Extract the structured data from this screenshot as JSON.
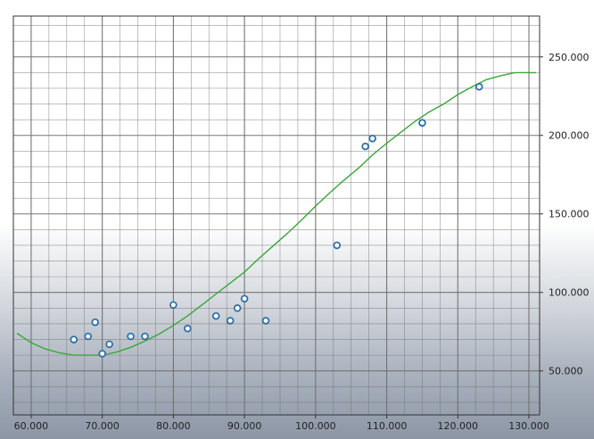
{
  "chart_data": {
    "type": "scatter",
    "title": "",
    "xlabel": "",
    "ylabel": "",
    "xlim": [
      57500,
      131500
    ],
    "ylim": [
      22000,
      276000
    ],
    "x_ticks": [
      60000,
      70000,
      80000,
      90000,
      100000,
      110000,
      120000,
      130000
    ],
    "x_tick_labels": [
      "60.000",
      "70.000",
      "80.000",
      "90.000",
      "100.000",
      "110.000",
      "120.000",
      "130.000"
    ],
    "y_ticks": [
      50000,
      100000,
      150000,
      200000,
      250000
    ],
    "y_tick_labels": [
      "50.000",
      "100.000",
      "150.000",
      "200.000",
      "250.000"
    ],
    "grid": true,
    "y_axis_position": "right",
    "colors": {
      "points_fill": "#ffffff",
      "points_stroke": "#2f6fa6",
      "trend_line": "#3aa63a",
      "grid": "#6f6f6f",
      "axis": "#333333"
    },
    "points": [
      {
        "x": 66000,
        "y": 70000
      },
      {
        "x": 68000,
        "y": 72000
      },
      {
        "x": 69000,
        "y": 81000
      },
      {
        "x": 70000,
        "y": 61000
      },
      {
        "x": 71000,
        "y": 67000
      },
      {
        "x": 74000,
        "y": 72000
      },
      {
        "x": 76000,
        "y": 72000
      },
      {
        "x": 80000,
        "y": 92000
      },
      {
        "x": 82000,
        "y": 77000
      },
      {
        "x": 86000,
        "y": 85000
      },
      {
        "x": 88000,
        "y": 82000
      },
      {
        "x": 89000,
        "y": 90000
      },
      {
        "x": 90000,
        "y": 96000
      },
      {
        "x": 93000,
        "y": 82000
      },
      {
        "x": 103000,
        "y": 130000
      },
      {
        "x": 107000,
        "y": 193000
      },
      {
        "x": 108000,
        "y": 198000
      },
      {
        "x": 115000,
        "y": 208000
      },
      {
        "x": 123000,
        "y": 231000
      }
    ],
    "trend_line": [
      {
        "x": 58000,
        "y": 74000
      },
      {
        "x": 60000,
        "y": 68000
      },
      {
        "x": 62000,
        "y": 64000
      },
      {
        "x": 64000,
        "y": 61500
      },
      {
        "x": 66000,
        "y": 60000
      },
      {
        "x": 68000,
        "y": 60000
      },
      {
        "x": 70000,
        "y": 60000
      },
      {
        "x": 72000,
        "y": 62000
      },
      {
        "x": 74000,
        "y": 65000
      },
      {
        "x": 76000,
        "y": 69000
      },
      {
        "x": 78000,
        "y": 73500
      },
      {
        "x": 80000,
        "y": 79000
      },
      {
        "x": 82000,
        "y": 85000
      },
      {
        "x": 84000,
        "y": 92000
      },
      {
        "x": 86000,
        "y": 99000
      },
      {
        "x": 88000,
        "y": 106000
      },
      {
        "x": 90000,
        "y": 113000
      },
      {
        "x": 92000,
        "y": 121500
      },
      {
        "x": 94000,
        "y": 129500
      },
      {
        "x": 96000,
        "y": 137500
      },
      {
        "x": 98000,
        "y": 146000
      },
      {
        "x": 100000,
        "y": 155000
      },
      {
        "x": 102000,
        "y": 163500
      },
      {
        "x": 104000,
        "y": 171500
      },
      {
        "x": 106000,
        "y": 179000
      },
      {
        "x": 108000,
        "y": 187500
      },
      {
        "x": 110000,
        "y": 195000
      },
      {
        "x": 112000,
        "y": 202000
      },
      {
        "x": 114000,
        "y": 209000
      },
      {
        "x": 116000,
        "y": 215000
      },
      {
        "x": 118000,
        "y": 220000
      },
      {
        "x": 120000,
        "y": 226000
      },
      {
        "x": 122000,
        "y": 231000
      },
      {
        "x": 124000,
        "y": 235500
      },
      {
        "x": 126000,
        "y": 238000
      },
      {
        "x": 128000,
        "y": 240000
      },
      {
        "x": 130000,
        "y": 240000
      },
      {
        "x": 131000,
        "y": 240000
      }
    ]
  }
}
